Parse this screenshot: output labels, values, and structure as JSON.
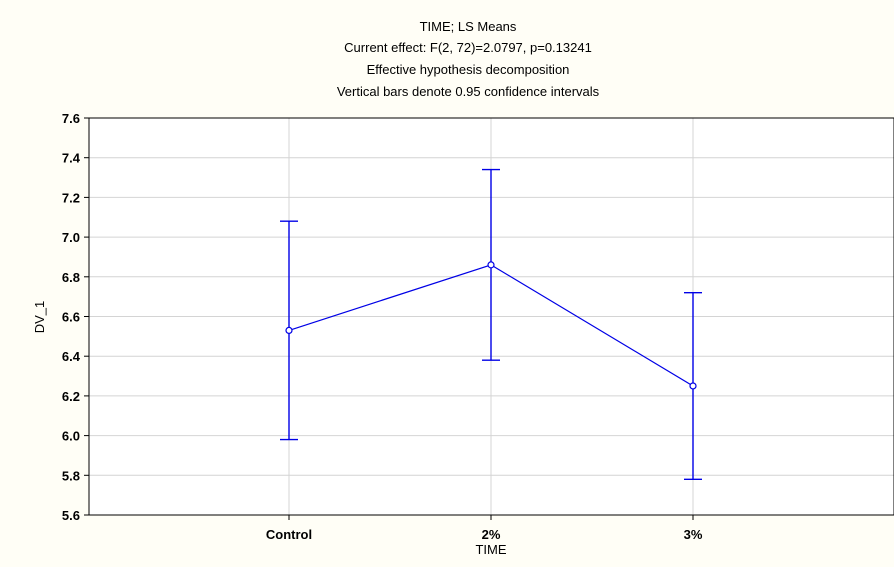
{
  "chart_data": {
    "type": "line",
    "title_lines": [
      "TIME; LS Means",
      "Current effect: F(2, 72)=2.0797, p=0.13241",
      "Effective hypothesis decomposition",
      "Vertical bars denote 0.95 confidence intervals"
    ],
    "xlabel": "TIME",
    "ylabel": "DV_1",
    "categories": [
      "Control",
      "2%",
      "3%"
    ],
    "series": [
      {
        "values": [
          6.53,
          6.86,
          6.25
        ],
        "ci_lower": [
          5.98,
          6.38,
          5.78
        ],
        "ci_upper": [
          7.08,
          7.34,
          6.72
        ]
      }
    ],
    "ylim": [
      5.6,
      7.6
    ],
    "yticks": [
      "7.6",
      "7.4",
      "7.2",
      "7.0",
      "6.8",
      "6.6",
      "6.4",
      "6.2",
      "6.0",
      "5.8",
      "5.6"
    ],
    "grid": true,
    "line_color": "#0000e6",
    "background_color": "#fffef6",
    "plot_background_color": "#ffffff",
    "grid_color": "#d4d4d4"
  }
}
